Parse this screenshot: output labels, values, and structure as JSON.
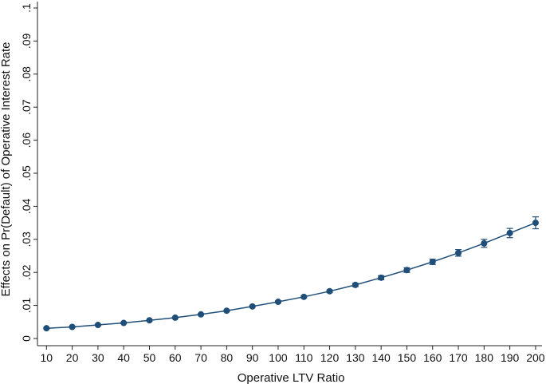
{
  "chart_data": {
    "type": "line",
    "title": "",
    "xlabel": "Operative LTV Ratio",
    "ylabel": "Effects on Pr(Default) of Operative Interest Rate",
    "x": [
      10,
      20,
      30,
      40,
      50,
      60,
      70,
      80,
      90,
      100,
      110,
      120,
      130,
      140,
      150,
      160,
      170,
      180,
      190,
      200
    ],
    "x_tick_labels": [
      "10",
      "20",
      "30",
      "40",
      "50",
      "60",
      "70",
      "80",
      "90",
      "100",
      "110",
      "120",
      "130",
      "140",
      "150",
      "160",
      "170",
      "180",
      "190",
      "200"
    ],
    "series": [
      {
        "values": [
          0.0031,
          0.0035,
          0.0041,
          0.0047,
          0.0055,
          0.0063,
          0.0073,
          0.0084,
          0.0097,
          0.0111,
          0.0126,
          0.0143,
          0.0162,
          0.0184,
          0.0207,
          0.0232,
          0.0259,
          0.0288,
          0.0319,
          0.035
        ],
        "ci_lower": [
          0.0029,
          0.0033,
          0.0039,
          0.0045,
          0.0053,
          0.0061,
          0.0071,
          0.0082,
          0.0095,
          0.0108,
          0.0123,
          0.0139,
          0.0157,
          0.0178,
          0.02,
          0.0224,
          0.0249,
          0.0276,
          0.0305,
          0.0332
        ],
        "ci_upper": [
          0.0033,
          0.0037,
          0.0043,
          0.0049,
          0.0057,
          0.0065,
          0.0075,
          0.0086,
          0.0099,
          0.0114,
          0.0129,
          0.0147,
          0.0167,
          0.019,
          0.0214,
          0.024,
          0.0269,
          0.03,
          0.0333,
          0.0368
        ],
        "color": "#1f4e79"
      }
    ],
    "y_ticks": [
      0,
      0.01,
      0.02,
      0.03,
      0.04,
      0.05,
      0.06,
      0.07,
      0.08,
      0.09,
      0.1
    ],
    "y_tick_labels": [
      "0",
      ".01",
      ".02",
      ".03",
      ".04",
      ".05",
      ".06",
      ".07",
      ".08",
      ".09",
      ".1"
    ],
    "xlim": [
      10,
      200
    ],
    "ylim": [
      0,
      0.1
    ],
    "y_tick_label_orientation": "vertical",
    "grid": false,
    "legend": "none",
    "colors": {
      "series": "#1f4e79",
      "axis": "#222222",
      "background": "#ffffff"
    }
  }
}
